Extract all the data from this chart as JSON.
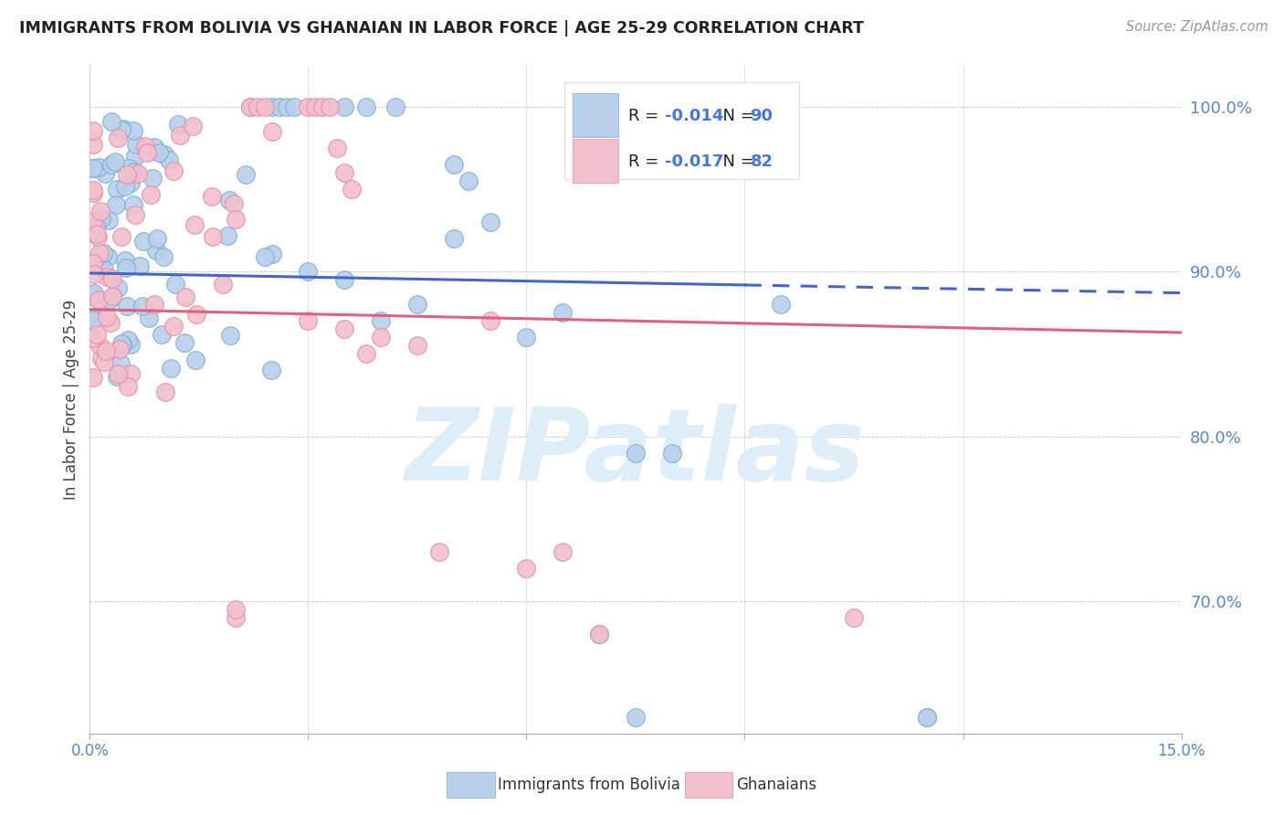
{
  "title": "IMMIGRANTS FROM BOLIVIA VS GHANAIAN IN LABOR FORCE | AGE 25-29 CORRELATION CHART",
  "source": "Source: ZipAtlas.com",
  "ylabel": "In Labor Force | Age 25-29",
  "xlim": [
    0.0,
    0.15
  ],
  "ylim": [
    0.62,
    1.025
  ],
  "xtick_vals": [
    0.0,
    0.03,
    0.06,
    0.09,
    0.12,
    0.15
  ],
  "xtick_labels": [
    "0.0%",
    "",
    "",
    "",
    "",
    "15.0%"
  ],
  "ytick_vals": [
    0.7,
    0.8,
    0.9,
    1.0
  ],
  "ytick_labels": [
    "70.0%",
    "80.0%",
    "90.0%",
    "100.0%"
  ],
  "blue_fill": "#b8d0ea",
  "blue_edge": "#7aadd4",
  "pink_fill": "#f2bfcc",
  "pink_edge": "#e88aaa",
  "line_blue_color": "#4466cc",
  "line_pink_color": "#e06080",
  "grid_color": "#cccccc",
  "tick_color": "#5588cc",
  "watermark_text": "ZIPatlas",
  "watermark_color": "#ddeef8",
  "legend_r_blue": "-0.014",
  "legend_n_blue": "90",
  "legend_r_pink": "-0.017",
  "legend_n_pink": "82",
  "legend_label_blue": "Immigrants from Bolivia",
  "legend_label_pink": "Ghanaians",
  "blue_line_solid_end": 0.09,
  "blue_line_y0": 0.899,
  "blue_line_y1": 0.887,
  "pink_line_y0": 0.877,
  "pink_line_y1": 0.863
}
